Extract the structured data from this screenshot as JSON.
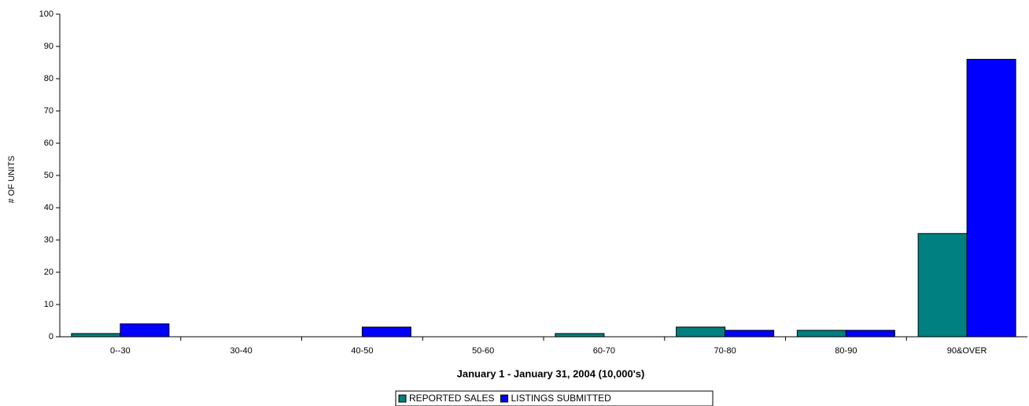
{
  "chart_data": {
    "type": "bar",
    "x_label": "January 1 - January 31, 2004 (10,000's)",
    "y_label": "# OF UNITS",
    "categories": [
      "0--30",
      "30-40",
      "40-50",
      "50-60",
      "60-70",
      "70-80",
      "80-90",
      "90&OVER"
    ],
    "series": [
      {
        "name": "REPORTED SALES",
        "color": "#008080",
        "values": [
          1,
          0,
          0,
          0,
          1,
          3,
          2,
          32
        ]
      },
      {
        "name": "LISTINGS SUBMITTED",
        "color": "#0000ff",
        "values": [
          4,
          0,
          3,
          0,
          0,
          2,
          2,
          86
        ]
      }
    ],
    "ylim": [
      0,
      100
    ],
    "yticks": [
      0,
      10,
      20,
      30,
      40,
      50,
      60,
      70,
      80,
      90,
      100
    ],
    "grid": false,
    "legend": "bottom"
  }
}
